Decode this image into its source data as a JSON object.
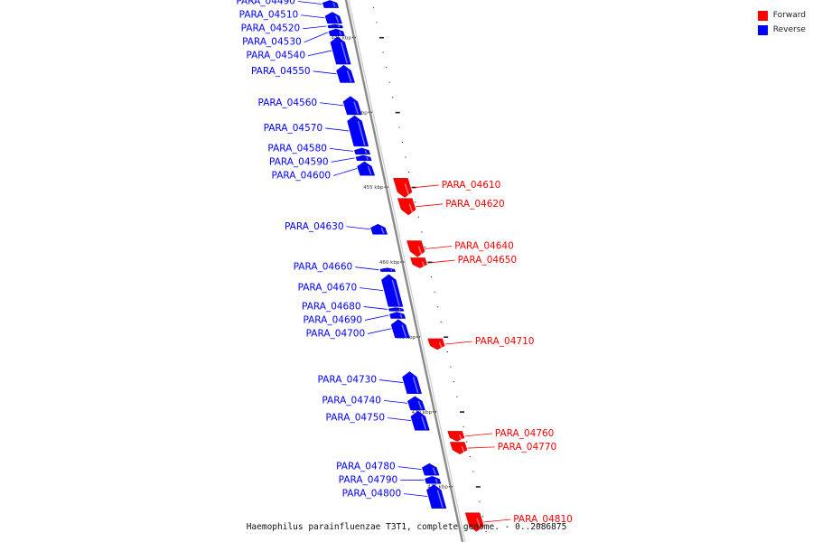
{
  "legend": [
    {
      "label": "Forward",
      "color": "#ff0000"
    },
    {
      "label": "Reverse",
      "color": "#0000ff"
    }
  ],
  "caption": "Haemophilus parainfluenzae T3T1, complete genome. - 0..2086875",
  "colors": {
    "forward": "#ff0000",
    "reverse": "#0000ff",
    "backbone": "#8a8a8a"
  },
  "axis": {
    "unit": "kbp",
    "ticks": [
      {
        "label": "445 kbp",
        "pos": 445.0
      },
      {
        "label": "450 kbp",
        "pos": 450.0
      },
      {
        "label": "455 kbp",
        "pos": 455.0
      },
      {
        "label": "460 kbp",
        "pos": 460.0
      },
      {
        "label": "465 kbp",
        "pos": 465.0
      },
      {
        "label": "470 kbp",
        "pos": 470.0
      },
      {
        "label": "475 kbp",
        "pos": 475.0
      }
    ]
  },
  "genes": [
    {
      "id": "PARA_04490",
      "strand": "reverse",
      "start": 442.52,
      "end": 443.02
    },
    {
      "id": "PARA_04510",
      "strand": "reverse",
      "start": 443.31,
      "end": 444.07
    },
    {
      "id": "PARA_04520",
      "strand": "reverse",
      "start": 444.13,
      "end": 444.37
    },
    {
      "id": "PARA_04530",
      "strand": "reverse",
      "start": 444.43,
      "end": 444.9
    },
    {
      "id": "PARA_04540",
      "strand": "reverse",
      "start": 444.96,
      "end": 446.79
    },
    {
      "id": "PARA_04550",
      "strand": "reverse",
      "start": 446.85,
      "end": 448.02
    },
    {
      "id": "PARA_04560",
      "strand": "reverse",
      "start": 448.93,
      "end": 450.16
    },
    {
      "id": "PARA_04570",
      "strand": "reverse",
      "start": 450.22,
      "end": 452.27
    },
    {
      "id": "PARA_04580",
      "strand": "reverse",
      "start": 452.39,
      "end": 452.81
    },
    {
      "id": "PARA_04590",
      "strand": "reverse",
      "start": 452.87,
      "end": 453.23
    },
    {
      "id": "PARA_04600",
      "strand": "reverse",
      "start": 453.29,
      "end": 454.22
    },
    {
      "id": "PARA_04610",
      "strand": "forward",
      "start": 454.4,
      "end": 455.69
    },
    {
      "id": "PARA_04620",
      "strand": "forward",
      "start": 455.75,
      "end": 456.86
    },
    {
      "id": "PARA_04630",
      "strand": "reverse",
      "start": 457.47,
      "end": 458.15
    },
    {
      "id": "PARA_04640",
      "strand": "forward",
      "start": 458.58,
      "end": 459.66
    },
    {
      "id": "PARA_04650",
      "strand": "forward",
      "start": 459.72,
      "end": 460.4
    },
    {
      "id": "PARA_04660",
      "strand": "reverse",
      "start": 460.4,
      "end": 460.64
    },
    {
      "id": "PARA_04670",
      "strand": "reverse",
      "start": 460.83,
      "end": 462.98
    },
    {
      "id": "PARA_04680",
      "strand": "reverse",
      "start": 463.04,
      "end": 463.28
    },
    {
      "id": "PARA_04690",
      "strand": "reverse",
      "start": 463.34,
      "end": 463.77
    },
    {
      "id": "PARA_04700",
      "strand": "reverse",
      "start": 463.83,
      "end": 465.06
    },
    {
      "id": "PARA_04710",
      "strand": "forward",
      "start": 465.12,
      "end": 465.85
    },
    {
      "id": "PARA_04730",
      "strand": "reverse",
      "start": 467.32,
      "end": 468.79
    },
    {
      "id": "PARA_04740",
      "strand": "reverse",
      "start": 468.97,
      "end": 469.89
    },
    {
      "id": "PARA_04750",
      "strand": "reverse",
      "start": 469.95,
      "end": 471.24
    },
    {
      "id": "PARA_04760",
      "strand": "forward",
      "start": 471.3,
      "end": 471.97
    },
    {
      "id": "PARA_04770",
      "strand": "forward",
      "start": 472.03,
      "end": 472.83
    },
    {
      "id": "PARA_04780",
      "strand": "reverse",
      "start": 473.45,
      "end": 474.25
    },
    {
      "id": "PARA_04790",
      "strand": "reverse",
      "start": 474.31,
      "end": 474.8
    },
    {
      "id": "PARA_04800",
      "strand": "reverse",
      "start": 474.86,
      "end": 476.45
    },
    {
      "id": "PARA_04810",
      "strand": "forward",
      "start": 476.75,
      "end": 478.0
    }
  ]
}
